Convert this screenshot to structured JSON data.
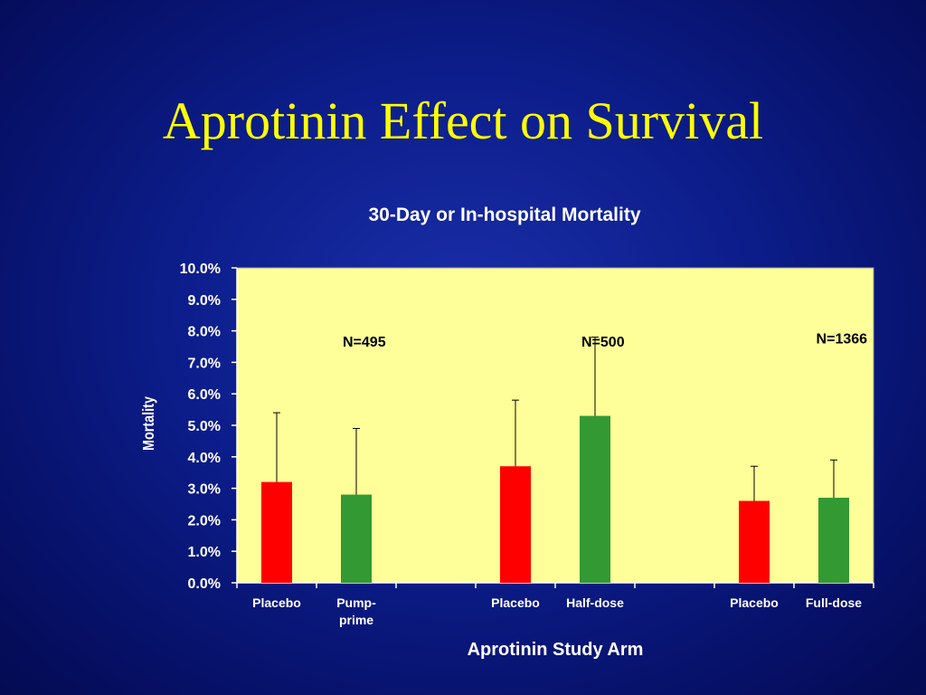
{
  "slide": {
    "title": "Aprotinin Effect on Survival"
  },
  "colors": {
    "background": "#0c1d8a",
    "title": "#ffff00",
    "plot_area": "#ffff99",
    "placebo": "#ff0000",
    "aprotinin": "#339933",
    "text": "#ffffff",
    "annotation": "#000000"
  },
  "chart_data": {
    "type": "bar",
    "title": "30-Day or In-hospital Mortality",
    "xlabel": "Aprotinin Study Arm",
    "ylabel": "Mortality",
    "ylim": [
      0,
      10
    ],
    "y_unit": "%",
    "yticks": [
      "0.0%",
      "1.0%",
      "2.0%",
      "3.0%",
      "4.0%",
      "5.0%",
      "6.0%",
      "7.0%",
      "8.0%",
      "9.0%",
      "10.0%"
    ],
    "grid": false,
    "legend": "none",
    "categories": [
      "Placebo",
      "Pump-prime",
      "",
      "Placebo",
      "Half-dose",
      "",
      "Placebo",
      "Full-dose"
    ],
    "category_label_lines": [
      [
        "Placebo"
      ],
      [
        "Pump-",
        "prime"
      ],
      [],
      [
        "Placebo"
      ],
      [
        "Half-dose"
      ],
      [],
      [
        "Placebo"
      ],
      [
        "Full-dose"
      ]
    ],
    "values": [
      3.2,
      2.8,
      null,
      3.7,
      5.3,
      null,
      2.6,
      2.7
    ],
    "error_upper": [
      5.4,
      4.9,
      null,
      5.8,
      7.8,
      null,
      3.7,
      3.9
    ],
    "bar_groups": [
      "placebo",
      "aprotinin",
      "",
      "placebo",
      "aprotinin",
      "",
      "placebo",
      "aprotinin"
    ],
    "annotations": [
      {
        "text": "N=495",
        "x": 1.1,
        "y": 7.5
      },
      {
        "text": "N=500",
        "x": 4.1,
        "y": 7.5
      },
      {
        "text": "N=1366",
        "x": 7.1,
        "y": 7.6
      }
    ]
  }
}
